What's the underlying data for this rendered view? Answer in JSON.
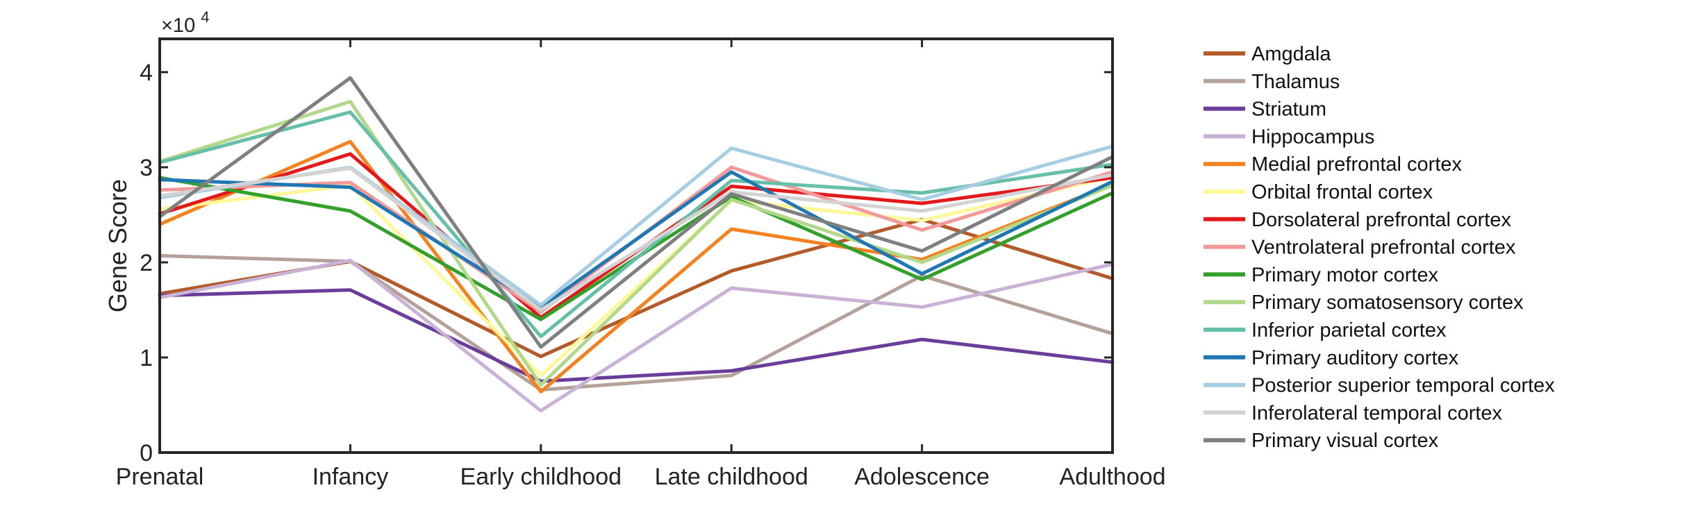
{
  "chart_data": {
    "type": "line",
    "ylabel": "Gene Score",
    "xlabel": "",
    "y_multiplier_label": "×10",
    "y_multiplier_exp": "4",
    "ylim": [
      0,
      43500
    ],
    "y_ticks": [
      {
        "value": 0,
        "label": "0"
      },
      {
        "value": 10000,
        "label": "1"
      },
      {
        "value": 20000,
        "label": "2"
      },
      {
        "value": 30000,
        "label": "3"
      },
      {
        "value": 40000,
        "label": "4"
      }
    ],
    "categories": [
      "Prenatal",
      "Infancy",
      "Early childhood",
      "Late childhood",
      "Adolescence",
      "Adulthood"
    ],
    "grid": false,
    "legend_position": "outside-right",
    "series": [
      {
        "name": "Amgdala",
        "color": "#b35a2a",
        "values": [
          16700,
          20100,
          10100,
          19100,
          24500,
          18300
        ]
      },
      {
        "name": "Thalamus",
        "color": "#b3a19a",
        "values": [
          20700,
          20100,
          6600,
          8100,
          18600,
          12500
        ]
      },
      {
        "name": "Striatum",
        "color": "#6a3d9a",
        "values": [
          16500,
          17100,
          7500,
          8600,
          11900,
          9500
        ]
      },
      {
        "name": "Hippocampus",
        "color": "#cab2d6",
        "values": [
          16300,
          20200,
          4400,
          17300,
          15300,
          19800
        ]
      },
      {
        "name": "Medial prefrontal cortex",
        "color": "#f58220",
        "values": [
          24000,
          32700,
          6400,
          23500,
          20300,
          28200
        ]
      },
      {
        "name": "Orbital frontal cortex",
        "color": "#fff799",
        "values": [
          25600,
          28100,
          8100,
          26500,
          24400,
          29000
        ]
      },
      {
        "name": "Dorsolateral prefrontal cortex",
        "color": "#e31a1c",
        "values": [
          25100,
          31400,
          14200,
          28000,
          26200,
          28900
        ]
      },
      {
        "name": "Ventrolateral prefrontal cortex",
        "color": "#f4999a",
        "values": [
          27600,
          28400,
          14800,
          30000,
          23400,
          29500
        ]
      },
      {
        "name": "Primary motor cortex",
        "color": "#33a02c",
        "values": [
          28900,
          25400,
          14000,
          26900,
          18200,
          27300
        ]
      },
      {
        "name": "Primary somatosensory cortex",
        "color": "#b2d88a",
        "values": [
          30600,
          36900,
          7100,
          26600,
          20000,
          28100
        ]
      },
      {
        "name": "Inferior parietal cortex",
        "color": "#66bfa8",
        "values": [
          30500,
          35800,
          12200,
          28600,
          27300,
          30300
        ]
      },
      {
        "name": "Primary auditory cortex",
        "color": "#1f78b4",
        "values": [
          28700,
          27900,
          15300,
          29500,
          18800,
          28500
        ]
      },
      {
        "name": "Posterior superior temporal cortex",
        "color": "#a6cee3",
        "values": [
          26800,
          30000,
          15500,
          32000,
          26600,
          32200
        ]
      },
      {
        "name": "Inferolateral temporal cortex",
        "color": "#d3d3d3",
        "values": [
          27000,
          29900,
          15000,
          27400,
          25400,
          29200
        ]
      },
      {
        "name": "Primary visual cortex",
        "color": "#7f7f7f",
        "values": [
          24800,
          39400,
          11100,
          27200,
          21200,
          31100
        ]
      }
    ]
  }
}
